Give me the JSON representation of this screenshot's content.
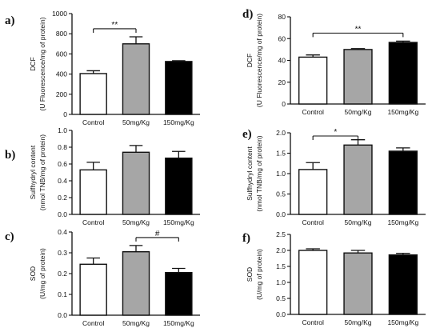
{
  "colors": {
    "control": "#ffffff",
    "dose_50": "#a6a6a6",
    "dose_150": "#000000",
    "axis": "#111111"
  },
  "chart_data": [
    {
      "panel": "a)",
      "type": "bar",
      "categories": [
        "Control",
        "50mg/Kg",
        "150mg/Kg"
      ],
      "values": [
        405,
        700,
        525
      ],
      "errors": [
        28,
        70,
        8
      ],
      "ylabel": [
        "DCF",
        "(U Fluorescence/mg of protein)"
      ],
      "ylim": [
        0,
        1000
      ],
      "yticks": [
        "0",
        "200",
        "400",
        "600",
        "800",
        "1000"
      ],
      "significance": [
        {
          "label": "**",
          "from": 0,
          "to": 1
        }
      ]
    },
    {
      "panel": "b)",
      "type": "bar",
      "categories": [
        "Control",
        "50mg/Kg",
        "150mg/Kg"
      ],
      "values": [
        0.53,
        0.74,
        0.67
      ],
      "errors": [
        0.09,
        0.08,
        0.08
      ],
      "ylabel": [
        "Sulfhydryl content",
        "(nmol TNB/mg of protein)"
      ],
      "ylim": [
        0,
        1.0
      ],
      "yticks": [
        "0.0",
        "0.2",
        "0.4",
        "0.6",
        "0.8",
        "1.0"
      ],
      "significance": []
    },
    {
      "panel": "c)",
      "type": "bar",
      "categories": [
        "Control",
        "50mg/Kg",
        "150mg/Kg"
      ],
      "values": [
        0.245,
        0.305,
        0.205
      ],
      "errors": [
        0.03,
        0.03,
        0.02
      ],
      "ylabel": [
        "SOD",
        "(U/mg of protein)"
      ],
      "ylim": [
        0,
        0.4
      ],
      "yticks": [
        "0.0",
        "0.1",
        "0.2",
        "0.3",
        "0.4"
      ],
      "significance": [
        {
          "label": "#",
          "from": 1,
          "to": 2
        }
      ]
    },
    {
      "panel": "d)",
      "type": "bar",
      "categories": [
        "Control",
        "50mg/Kg",
        "150mg/Kg"
      ],
      "values": [
        43,
        50,
        56.5
      ],
      "errors": [
        2,
        0.8,
        1.2
      ],
      "ylabel": [
        "DCF",
        "(U Fluorescence/mg of protein)"
      ],
      "ylim": [
        0,
        80
      ],
      "yticks": [
        "0",
        "20",
        "40",
        "60",
        "80"
      ],
      "significance": [
        {
          "label": "**",
          "from": 0,
          "to": 2
        }
      ]
    },
    {
      "panel": "e)",
      "type": "bar",
      "categories": [
        "Control",
        "50mg/Kg",
        "150mg/Kg"
      ],
      "values": [
        1.1,
        1.7,
        1.55
      ],
      "errors": [
        0.17,
        0.13,
        0.08
      ],
      "ylabel": [
        "Sulfhydryl content",
        "(nmol TNB/mg of protein)"
      ],
      "ylim": [
        0,
        2.0
      ],
      "yticks": [
        "0.0",
        "0.5",
        "1.0",
        "1.5",
        "2.0"
      ],
      "significance": [
        {
          "label": "*",
          "from": 0,
          "to": 1
        }
      ]
    },
    {
      "panel": "f)",
      "type": "bar",
      "categories": [
        "Control",
        "50mg/Kg",
        "150mg/Kg"
      ],
      "values": [
        2.0,
        1.92,
        1.86
      ],
      "errors": [
        0.05,
        0.08,
        0.05
      ],
      "ylabel": [
        "SOD",
        "(U/mg of protein)"
      ],
      "ylim": [
        0,
        2.5
      ],
      "yticks": [
        "0.0",
        "0.5",
        "1.0",
        "1.5",
        "2.0",
        "2.5"
      ],
      "significance": []
    }
  ]
}
